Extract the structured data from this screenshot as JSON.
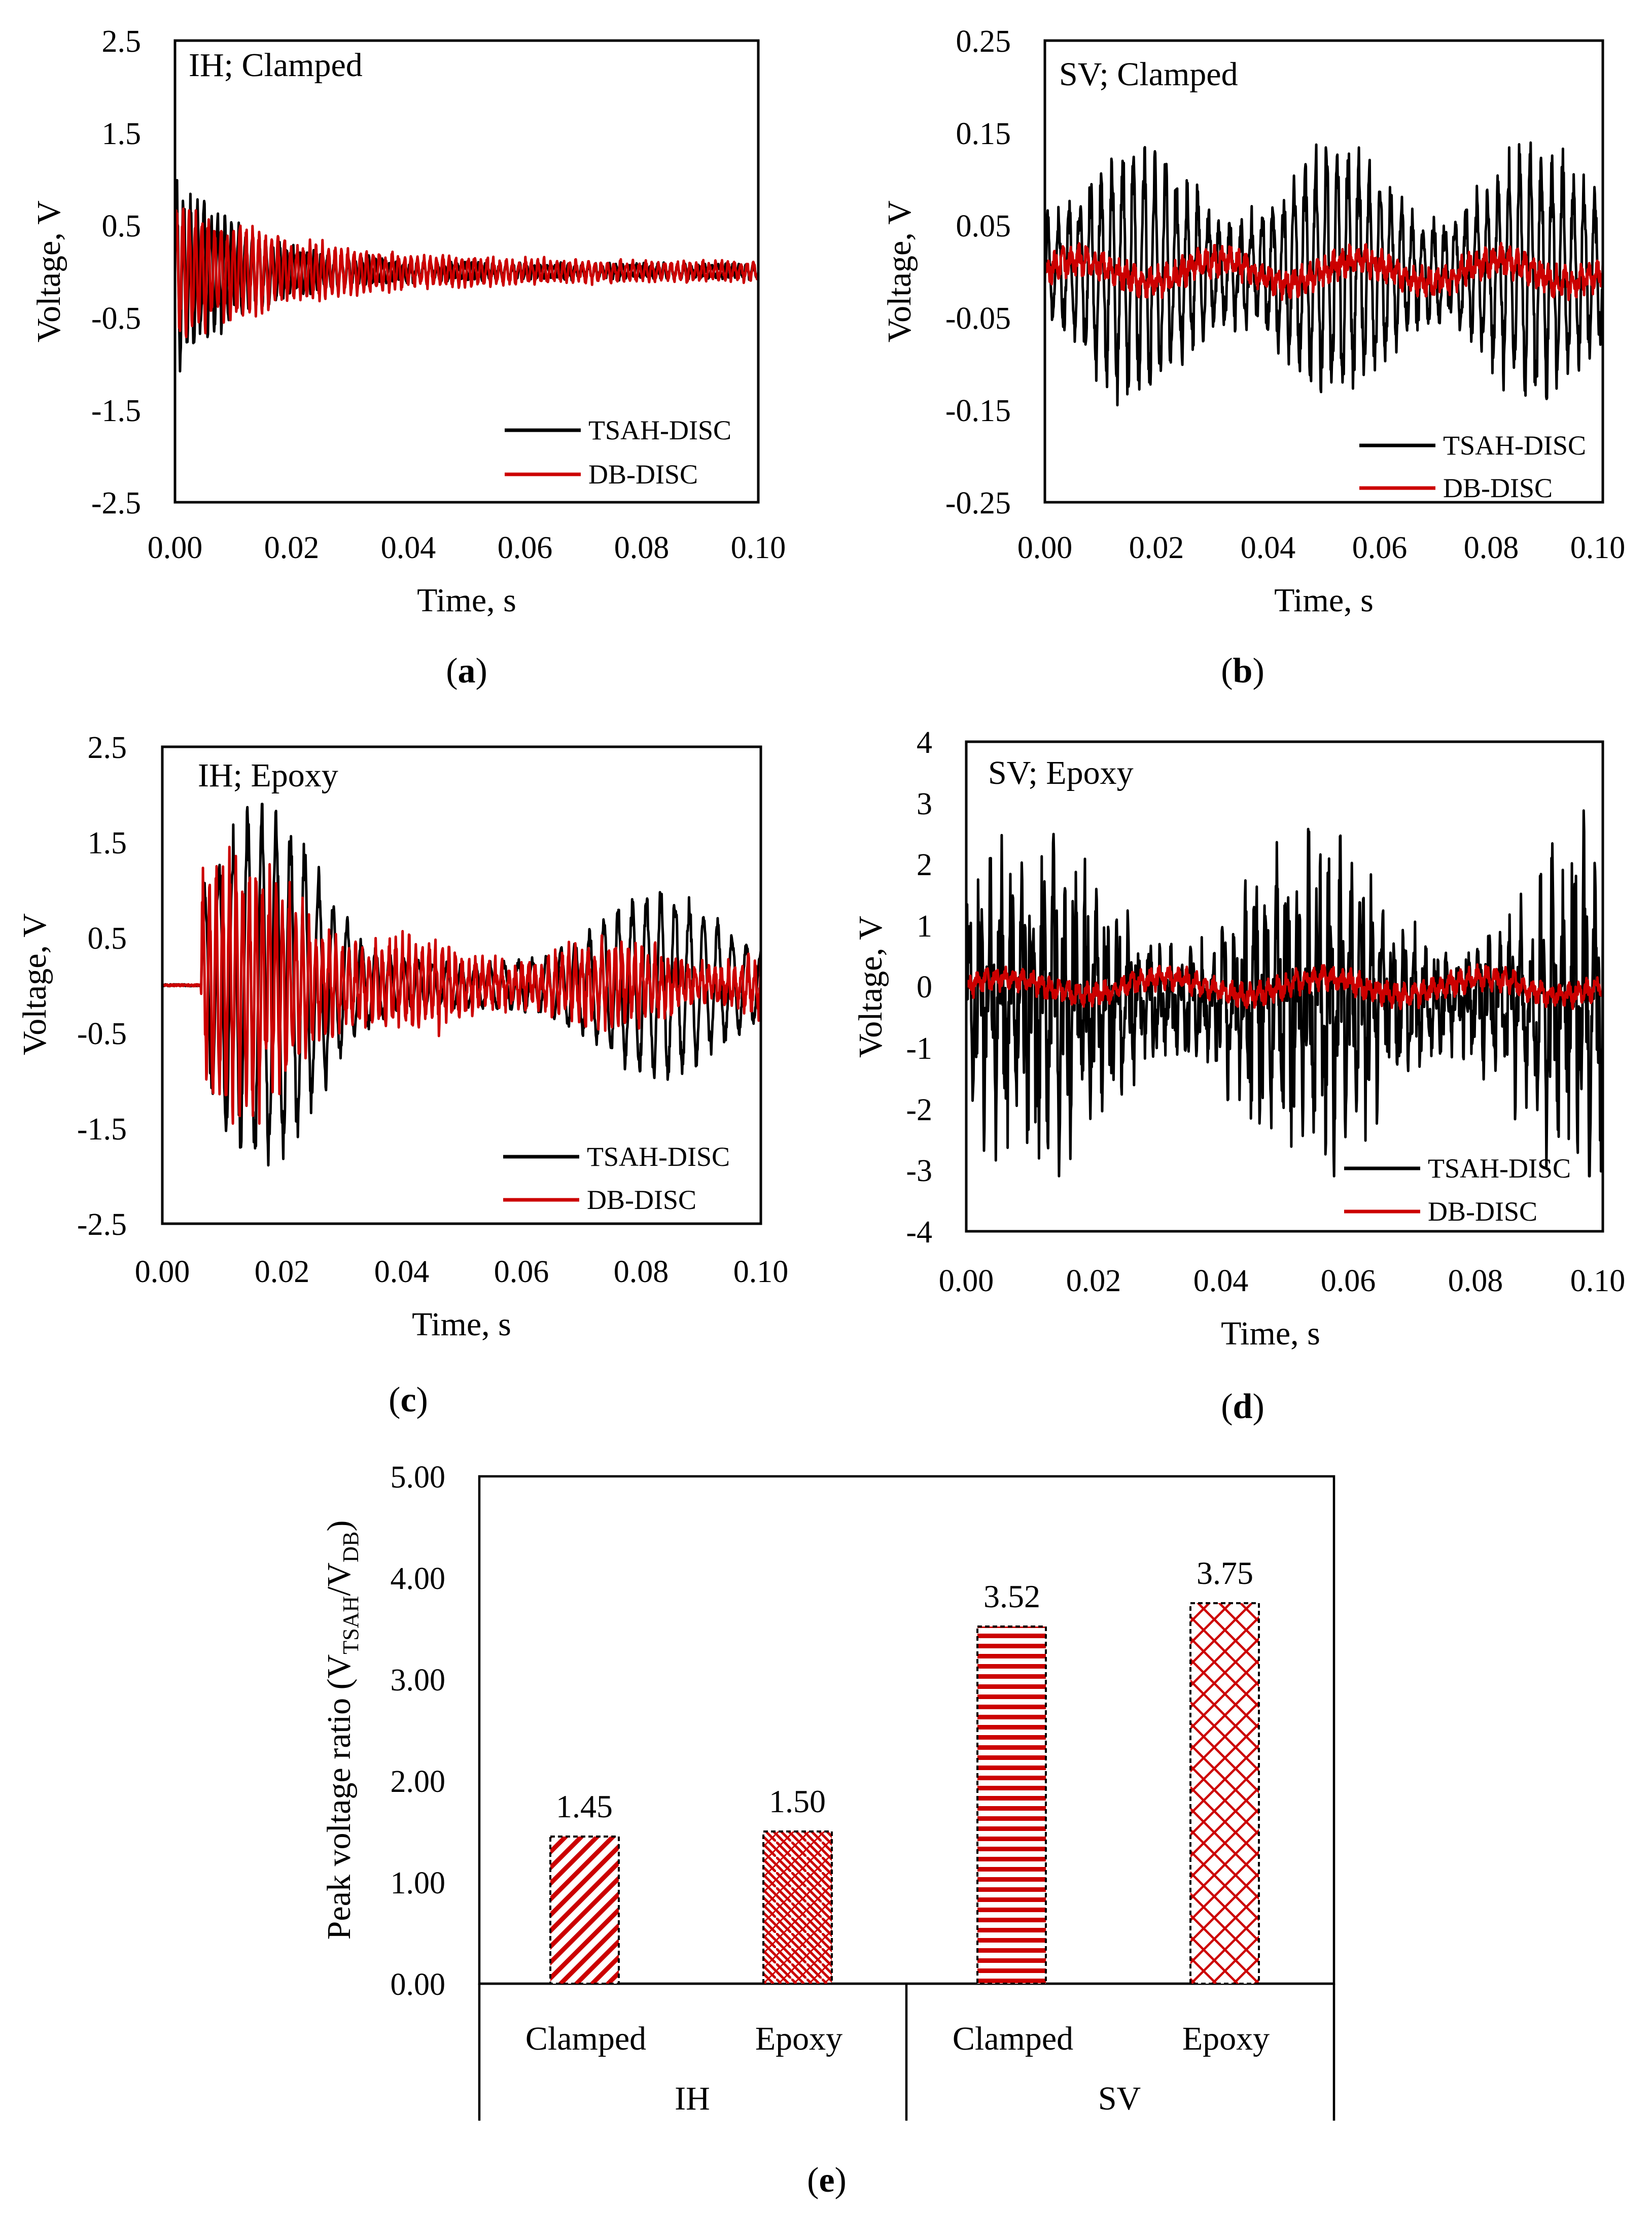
{
  "figure_captions": {
    "a": {
      "open": "(",
      "letter": "a",
      "close": ")"
    },
    "b": {
      "open": "(",
      "letter": "b",
      "close": ")"
    },
    "c": {
      "open": "(",
      "letter": "c",
      "close": ")"
    },
    "d": {
      "open": "(",
      "letter": "d",
      "close": ")"
    },
    "e": {
      "open": "(",
      "letter": "e",
      "close": ")"
    }
  },
  "colors": {
    "tsah": "#000000",
    "db": "#cc0000",
    "bar_fill": "#cc0000",
    "bar_edge": "#000000"
  },
  "chart_data": [
    {
      "id": "a",
      "type": "line",
      "title": "IH; Clamped",
      "xlabel": "Time, s",
      "ylabel": "Voltage, V",
      "xlim": [
        0.0,
        0.1
      ],
      "ylim": [
        -2.5,
        2.5
      ],
      "xticks": [
        "0.00",
        "0.02",
        "0.04",
        "0.06",
        "0.08",
        "0.10"
      ],
      "yticks": [
        "2.5",
        "1.5",
        "0.5",
        "-0.5",
        "-1.5",
        "-2.5"
      ],
      "legend": [
        "TSAH-DISC",
        "DB-DISC"
      ],
      "legend_position": "bottom-right",
      "series": [
        {
          "name": "TSAH-DISC",
          "color": "#000000",
          "signal": "decaying",
          "f": 850,
          "amp": 1.15,
          "decay": 0.012,
          "floor": 0.08,
          "start": 0.0,
          "peak": 1.35
        },
        {
          "name": "DB-DISC",
          "color": "#cc0000",
          "signal": "decaying",
          "f": 920,
          "amp": 0.75,
          "decay": 0.02,
          "floor": 0.1,
          "start": 0.0,
          "peak": 0.95
        }
      ]
    },
    {
      "id": "b",
      "type": "line",
      "title": "SV; Clamped",
      "xlabel": "Time, s",
      "ylabel": "Voltage, V",
      "xlim": [
        0.0,
        0.1
      ],
      "ylim": [
        -0.25,
        0.25
      ],
      "xticks": [
        "0.00",
        "0.02",
        "0.04",
        "0.06",
        "0.08",
        "0.10"
      ],
      "yticks": [
        "0.25",
        "0.15",
        "0.05",
        "-0.05",
        "-0.15",
        "-0.25"
      ],
      "legend": [
        "TSAH-DISC",
        "DB-DISC"
      ],
      "legend_position": "bottom-right",
      "series": [
        {
          "name": "TSAH-DISC",
          "color": "#000000",
          "signal": "beating",
          "f": 520,
          "amp": 0.1,
          "mod": 0.045,
          "start": 0.0,
          "peak": 0.165
        },
        {
          "name": "DB-DISC",
          "color": "#cc0000",
          "signal": "noise",
          "f": 700,
          "amp": 0.015,
          "start": 0.0,
          "peak": 0.04
        }
      ]
    },
    {
      "id": "c",
      "type": "line",
      "title": "IH; Epoxy",
      "xlabel": "Time, s",
      "ylabel": "Voltage, V",
      "xlim": [
        0.0,
        0.1
      ],
      "ylim": [
        -2.5,
        2.5
      ],
      "xticks": [
        "0.00",
        "0.02",
        "0.04",
        "0.06",
        "0.08",
        "0.10"
      ],
      "yticks": [
        "2.5",
        "1.5",
        "0.5",
        "-0.5",
        "-1.5",
        "-2.5"
      ],
      "legend": [
        "TSAH-DISC",
        "DB-DISC"
      ],
      "legend_position": "bottom-right",
      "series": [
        {
          "name": "TSAH-DISC",
          "color": "#000000",
          "signal": "epoxy-ih",
          "f": 420,
          "amp": 1.7,
          "start": 0.0065,
          "peak": 1.9
        },
        {
          "name": "DB-DISC",
          "color": "#cc0000",
          "signal": "epoxy-ih-db",
          "f": 900,
          "amp": 1.2,
          "start": 0.0065,
          "peak": 1.45
        }
      ]
    },
    {
      "id": "d",
      "type": "line",
      "title": "SV; Epoxy",
      "xlabel": "Time, s",
      "ylabel": "Voltage, V",
      "xlim": [
        0.0,
        0.1
      ],
      "ylim": [
        -4,
        4
      ],
      "xticks": [
        "0.00",
        "0.02",
        "0.04",
        "0.06",
        "0.08",
        "0.10"
      ],
      "yticks": [
        "4",
        "3",
        "2",
        "1",
        "0",
        "-1",
        "-2",
        "-3",
        "-4"
      ],
      "legend": [
        "TSAH-DISC",
        "DB-DISC"
      ],
      "legend_position": "bottom-right",
      "series": [
        {
          "name": "TSAH-DISC",
          "color": "#000000",
          "signal": "random",
          "f": 600,
          "amp": 1.3,
          "start": 0.0,
          "peak": 3.1
        },
        {
          "name": "DB-DISC",
          "color": "#cc0000",
          "signal": "noise",
          "f": 700,
          "amp": 0.18,
          "start": 0.0,
          "peak": 0.55
        }
      ]
    },
    {
      "id": "e",
      "type": "bar",
      "ylabel_main": "Peak voltage ratio (V",
      "ylabel_sub1": "TSAH",
      "ylabel_mid": "/V",
      "ylabel_sub2": "DB",
      "ylabel_close": ")",
      "ylim": [
        0.0,
        5.0
      ],
      "yticks": [
        "5.00",
        "4.00",
        "3.00",
        "2.00",
        "1.00",
        "0.00"
      ],
      "groups": [
        {
          "name": "IH",
          "categories": [
            "Clamped",
            "Epoxy"
          ]
        },
        {
          "name": "SV",
          "categories": [
            "Clamped",
            "Epoxy"
          ]
        }
      ],
      "values": [
        1.45,
        1.5,
        3.52,
        3.75
      ],
      "value_labels": [
        "1.45",
        "1.50",
        "3.52",
        "3.75"
      ],
      "patterns": [
        "diagonal",
        "weave",
        "horizontal",
        "crosshatch"
      ]
    }
  ]
}
